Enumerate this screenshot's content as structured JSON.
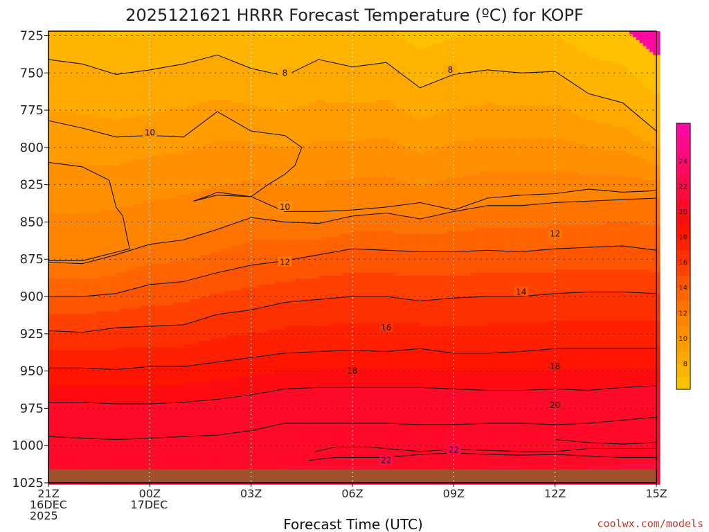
{
  "chart_data": {
    "type": "heatmap",
    "title": "2025121621 HRRR Forecast Temperature (ºC) for KOPF",
    "xlabel": "Forecast Time (UTC)",
    "ylabel": "",
    "credit": "coolwx.com/models",
    "x_tick_labels": [
      {
        "hour": 0,
        "lines": [
          "21Z",
          "16DEC",
          "2025"
        ]
      },
      {
        "hour": 3,
        "lines": [
          "00Z",
          "17DEC"
        ]
      },
      {
        "hour": 6,
        "lines": [
          "03Z"
        ]
      },
      {
        "hour": 9,
        "lines": [
          "06Z"
        ]
      },
      {
        "hour": 12,
        "lines": [
          "09Z"
        ]
      },
      {
        "hour": 15,
        "lines": [
          "12Z"
        ]
      },
      {
        "hour": 18,
        "lines": [
          "15Z"
        ]
      }
    ],
    "xlim": [
      0,
      18
    ],
    "ylim": [
      725,
      1025
    ],
    "y_ticks": [
      725,
      750,
      775,
      800,
      825,
      850,
      875,
      900,
      925,
      950,
      975,
      1000,
      1025
    ],
    "colorbar": {
      "ticks": [
        8,
        10,
        12,
        14,
        16,
        18,
        20,
        22,
        24
      ],
      "range": [
        6,
        27
      ],
      "levels": [
        {
          "lo": 6,
          "hi": 7,
          "color": "#ffc000"
        },
        {
          "lo": 7,
          "hi": 8,
          "color": "#ffb400"
        },
        {
          "lo": 8,
          "hi": 9,
          "color": "#ffa800"
        },
        {
          "lo": 9,
          "hi": 10,
          "color": "#ff9c00"
        },
        {
          "lo": 10,
          "hi": 11,
          "color": "#ff9000"
        },
        {
          "lo": 11,
          "hi": 12,
          "color": "#ff8400"
        },
        {
          "lo": 12,
          "hi": 13,
          "color": "#ff7400"
        },
        {
          "lo": 13,
          "hi": 14,
          "color": "#ff6400"
        },
        {
          "lo": 14,
          "hi": 15,
          "color": "#ff5400"
        },
        {
          "lo": 15,
          "hi": 16,
          "color": "#ff4000"
        },
        {
          "lo": 16,
          "hi": 17,
          "color": "#ff3000"
        },
        {
          "lo": 17,
          "hi": 18,
          "color": "#ff2000"
        },
        {
          "lo": 18,
          "hi": 19,
          "color": "#ff1400"
        },
        {
          "lo": 19,
          "hi": 20,
          "color": "#ff0c10"
        },
        {
          "lo": 20,
          "hi": 21,
          "color": "#ff0a28"
        },
        {
          "lo": 21,
          "hi": 22,
          "color": "#ff0a3c"
        },
        {
          "lo": 22,
          "hi": 23,
          "color": "#ff0a50"
        },
        {
          "lo": 23,
          "hi": 24,
          "color": "#ff0a64"
        },
        {
          "lo": 24,
          "hi": 25,
          "color": "#ff0a78"
        },
        {
          "lo": 25,
          "hi": 26,
          "color": "#ff0a8c"
        },
        {
          "lo": 26,
          "hi": 27,
          "color": "#ff0aa0"
        }
      ]
    },
    "ground_color": "#a0522d",
    "grid": true,
    "contours": [
      {
        "level": 22,
        "points": [
          [
            7.7,
            1010
          ],
          [
            8.5,
            1008
          ],
          [
            10,
            1008
          ],
          [
            11,
            1006
          ],
          [
            12,
            1005
          ],
          [
            13,
            1006
          ],
          [
            14,
            1006.5
          ],
          [
            15,
            1006
          ],
          [
            16,
            1007
          ],
          [
            17,
            1008
          ],
          [
            18,
            1008
          ]
        ]
      },
      {
        "level": 22,
        "points": [
          [
            7.9,
            1004
          ],
          [
            8.5,
            1001
          ],
          [
            9.5,
            1001
          ],
          [
            11,
            1004
          ],
          [
            12,
            1002.5
          ],
          [
            14,
            1004
          ],
          [
            15,
            1004
          ],
          [
            16,
            1002
          ],
          [
            17,
            1002
          ],
          [
            18,
            1002
          ]
        ]
      },
      {
        "level": 22,
        "points": [
          [
            15,
            996
          ],
          [
            16,
            998
          ],
          [
            17,
            999
          ],
          [
            18,
            998
          ]
        ]
      },
      {
        "level": 20,
        "points": [
          [
            0,
            994
          ],
          [
            1,
            995
          ],
          [
            2,
            996
          ],
          [
            3,
            995
          ],
          [
            4,
            994
          ],
          [
            5,
            993
          ],
          [
            6,
            990
          ],
          [
            7,
            985
          ],
          [
            8,
            985
          ],
          [
            9,
            985
          ],
          [
            10,
            985
          ],
          [
            11,
            986
          ],
          [
            12,
            986
          ],
          [
            13,
            985
          ],
          [
            14,
            985
          ],
          [
            15,
            986
          ],
          [
            16,
            985
          ],
          [
            17,
            983
          ],
          [
            18,
            981
          ]
        ]
      },
      {
        "level": 20,
        "points": [
          [
            0,
            971
          ],
          [
            1,
            971
          ],
          [
            2,
            972
          ],
          [
            3,
            972
          ],
          [
            4,
            971
          ],
          [
            5,
            969
          ],
          [
            6,
            966
          ],
          [
            7,
            962
          ],
          [
            8,
            961
          ],
          [
            9,
            961
          ],
          [
            10,
            961
          ],
          [
            11,
            961
          ],
          [
            12,
            962
          ],
          [
            13,
            963
          ],
          [
            14,
            963
          ],
          [
            15,
            962
          ],
          [
            16,
            963
          ],
          [
            17,
            961
          ],
          [
            18,
            960
          ]
        ]
      },
      {
        "level": 18,
        "points": [
          [
            0,
            948
          ],
          [
            1,
            948
          ],
          [
            2,
            949
          ],
          [
            3,
            947
          ],
          [
            4,
            947
          ],
          [
            5,
            944
          ],
          [
            6,
            941
          ],
          [
            7,
            938
          ],
          [
            8,
            937
          ],
          [
            9,
            936
          ],
          [
            10,
            937
          ],
          [
            11,
            935
          ],
          [
            12,
            938
          ],
          [
            13,
            938
          ],
          [
            14,
            937
          ],
          [
            15,
            935
          ],
          [
            16,
            935
          ],
          [
            17,
            935
          ],
          [
            18,
            935
          ]
        ]
      },
      {
        "level": 16,
        "points": [
          [
            0,
            923
          ],
          [
            1,
            924
          ],
          [
            2,
            921
          ],
          [
            3,
            920
          ],
          [
            4,
            919
          ],
          [
            5,
            912
          ],
          [
            6,
            909
          ],
          [
            7,
            904
          ],
          [
            8,
            902
          ],
          [
            9,
            900
          ],
          [
            10,
            900
          ],
          [
            11,
            903
          ],
          [
            12,
            901
          ],
          [
            13,
            900
          ],
          [
            14,
            900
          ],
          [
            15,
            898
          ],
          [
            16,
            897
          ],
          [
            17,
            897
          ],
          [
            18,
            898
          ]
        ]
      },
      {
        "level": 14,
        "points": [
          [
            0,
            900
          ],
          [
            1,
            900
          ],
          [
            2,
            898
          ],
          [
            3,
            892
          ],
          [
            4,
            890
          ],
          [
            5,
            884
          ],
          [
            6,
            879
          ],
          [
            7,
            876
          ],
          [
            8,
            872
          ],
          [
            9,
            868
          ],
          [
            10,
            869
          ],
          [
            11,
            870
          ],
          [
            12,
            870
          ],
          [
            13,
            869
          ],
          [
            14,
            870
          ],
          [
            15,
            868
          ],
          [
            16,
            867
          ],
          [
            17,
            866
          ],
          [
            18,
            869
          ]
        ]
      },
      {
        "level": 12,
        "points": [
          [
            0,
            877
          ],
          [
            1,
            878
          ],
          [
            2,
            872
          ],
          [
            3,
            865
          ],
          [
            4,
            862
          ],
          [
            5,
            855
          ],
          [
            6,
            847
          ],
          [
            7,
            850
          ],
          [
            8,
            851
          ],
          [
            9,
            846
          ],
          [
            10,
            844
          ],
          [
            11,
            848
          ],
          [
            12,
            843
          ],
          [
            13,
            839
          ],
          [
            14,
            839
          ],
          [
            15,
            837
          ],
          [
            16,
            836
          ],
          [
            17,
            835
          ],
          [
            18,
            834
          ]
        ]
      },
      {
        "level": 10,
        "points": [
          [
            4.3,
            836
          ],
          [
            4.8,
            832
          ],
          [
            5,
            830
          ],
          [
            6,
            833
          ],
          [
            7,
            843
          ],
          [
            8,
            843
          ],
          [
            9,
            842
          ],
          [
            10,
            840
          ],
          [
            11,
            837
          ],
          [
            12,
            842
          ],
          [
            13,
            834
          ],
          [
            14,
            832
          ],
          [
            15,
            831
          ],
          [
            16,
            828
          ],
          [
            17,
            830
          ],
          [
            18,
            829
          ]
        ]
      },
      {
        "level": 10,
        "points": [
          [
            4.3,
            836
          ],
          [
            5,
            832
          ],
          [
            6,
            833
          ],
          [
            6.5,
            825
          ],
          [
            7,
            818
          ],
          [
            7.3,
            812
          ],
          [
            7.5,
            800
          ],
          [
            7,
            792
          ],
          [
            6,
            789
          ],
          [
            5,
            776
          ],
          [
            4,
            793
          ],
          [
            3,
            792
          ],
          [
            2,
            793
          ],
          [
            1,
            787
          ],
          [
            0,
            782
          ]
        ]
      },
      {
        "level": 10,
        "points": [
          [
            0,
            810
          ],
          [
            1,
            813
          ],
          [
            1.8,
            822
          ],
          [
            2,
            840
          ],
          [
            2.2,
            846
          ],
          [
            2.4,
            868
          ],
          [
            1,
            876
          ],
          [
            0,
            876
          ]
        ]
      },
      {
        "level": 8,
        "points": [
          [
            0,
            741
          ],
          [
            1,
            744
          ],
          [
            2,
            751
          ],
          [
            3,
            748
          ],
          [
            4,
            744
          ],
          [
            5,
            738
          ],
          [
            6,
            747
          ],
          [
            7,
            752
          ],
          [
            8,
            741
          ],
          [
            9,
            746
          ],
          [
            10,
            743
          ],
          [
            11,
            760
          ],
          [
            12,
            751
          ],
          [
            13,
            748
          ],
          [
            14,
            750
          ],
          [
            15,
            749
          ],
          [
            16,
            764
          ],
          [
            17,
            770
          ],
          [
            18,
            789
          ]
        ]
      }
    ],
    "contour_labels": [
      {
        "text": "8",
        "x": 7.0,
        "y": 750
      },
      {
        "text": "8",
        "x": 11.9,
        "y": 748
      },
      {
        "text": "10",
        "x": 3.0,
        "y": 790
      },
      {
        "text": "10",
        "x": 7.0,
        "y": 840
      },
      {
        "text": "12",
        "x": 7.0,
        "y": 877
      },
      {
        "text": "12",
        "x": 15.0,
        "y": 858
      },
      {
        "text": "14",
        "x": 14.0,
        "y": 897
      },
      {
        "text": "16",
        "x": 10.0,
        "y": 921
      },
      {
        "text": "18",
        "x": 9.0,
        "y": 950
      },
      {
        "text": "18",
        "x": 15.0,
        "y": 947
      },
      {
        "text": "20",
        "x": 15.0,
        "y": 973
      },
      {
        "text": "22",
        "x": 12.0,
        "y": 1003
      },
      {
        "text": "22",
        "x": 10.0,
        "y": 1010
      }
    ]
  }
}
